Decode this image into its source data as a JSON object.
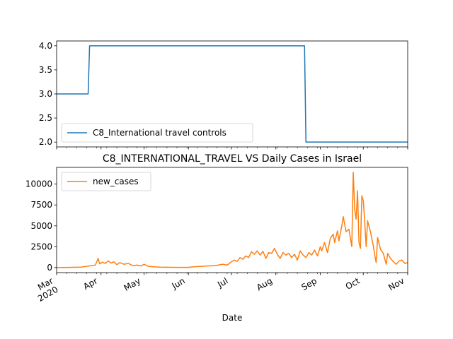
{
  "chart_data": [
    {
      "type": "line",
      "title": "",
      "xlabel": "",
      "ylabel": "",
      "ylim": [
        1.9,
        4.1
      ],
      "yticks": [
        "2.0",
        "2.5",
        "3.0",
        "3.5",
        "4.0"
      ],
      "legend": "lower-left",
      "series": [
        {
          "name": "C8_International travel controls",
          "color": "#1f77b4",
          "points": [
            [
              "2020-03-01",
              3
            ],
            [
              "2020-03-23",
              3
            ],
            [
              "2020-03-24",
              4
            ],
            [
              "2020-08-21",
              4
            ],
            [
              "2020-08-22",
              2
            ],
            [
              "2020-11-01",
              2
            ]
          ]
        }
      ]
    },
    {
      "type": "line",
      "title": "C8_INTERNATIONAL_TRAVEL VS Daily Cases in Israel",
      "xlabel": "Date",
      "ylabel": "",
      "ylim": [
        -600,
        12000
      ],
      "yticks": [
        "0",
        "2500",
        "5000",
        "7500",
        "10000"
      ],
      "xticks": [
        {
          "date": "2020-03-01",
          "label": "Mar",
          "sublabel": "2020"
        },
        {
          "date": "2020-04-01",
          "label": "Apr"
        },
        {
          "date": "2020-05-01",
          "label": "May"
        },
        {
          "date": "2020-06-01",
          "label": "Jun"
        },
        {
          "date": "2020-07-01",
          "label": "Jul"
        },
        {
          "date": "2020-08-01",
          "label": "Aug"
        },
        {
          "date": "2020-09-01",
          "label": "Sep"
        },
        {
          "date": "2020-10-01",
          "label": "Oct"
        },
        {
          "date": "2020-11-01",
          "label": "Nov"
        }
      ],
      "legend": "upper-left",
      "series": [
        {
          "name": "new_cases",
          "color": "#ff7f0e",
          "points": [
            [
              "2020-03-01",
              0
            ],
            [
              "2020-03-10",
              20
            ],
            [
              "2020-03-18",
              60
            ],
            [
              "2020-03-24",
              200
            ],
            [
              "2020-03-28",
              300
            ],
            [
              "2020-03-30",
              1100
            ],
            [
              "2020-03-31",
              450
            ],
            [
              "2020-04-02",
              650
            ],
            [
              "2020-04-04",
              500
            ],
            [
              "2020-04-06",
              800
            ],
            [
              "2020-04-08",
              550
            ],
            [
              "2020-04-10",
              700
            ],
            [
              "2020-04-12",
              350
            ],
            [
              "2020-04-14",
              600
            ],
            [
              "2020-04-17",
              400
            ],
            [
              "2020-04-20",
              500
            ],
            [
              "2020-04-23",
              250
            ],
            [
              "2020-04-26",
              300
            ],
            [
              "2020-04-29",
              200
            ],
            [
              "2020-05-01",
              400
            ],
            [
              "2020-05-04",
              150
            ],
            [
              "2020-05-08",
              100
            ],
            [
              "2020-05-12",
              60
            ],
            [
              "2020-05-20",
              30
            ],
            [
              "2020-05-31",
              20
            ],
            [
              "2020-06-05",
              100
            ],
            [
              "2020-06-10",
              150
            ],
            [
              "2020-06-15",
              200
            ],
            [
              "2020-06-20",
              250
            ],
            [
              "2020-06-25",
              400
            ],
            [
              "2020-06-28",
              300
            ],
            [
              "2020-07-01",
              700
            ],
            [
              "2020-07-03",
              900
            ],
            [
              "2020-07-05",
              750
            ],
            [
              "2020-07-07",
              1200
            ],
            [
              "2020-07-09",
              1000
            ],
            [
              "2020-07-11",
              1400
            ],
            [
              "2020-07-13",
              1200
            ],
            [
              "2020-07-15",
              1900
            ],
            [
              "2020-07-17",
              1600
            ],
            [
              "2020-07-19",
              2000
            ],
            [
              "2020-07-21",
              1500
            ],
            [
              "2020-07-23",
              1950
            ],
            [
              "2020-07-25",
              1100
            ],
            [
              "2020-07-27",
              1800
            ],
            [
              "2020-07-29",
              1700
            ],
            [
              "2020-07-31",
              2300
            ],
            [
              "2020-08-02",
              1600
            ],
            [
              "2020-08-04",
              1100
            ],
            [
              "2020-08-06",
              1800
            ],
            [
              "2020-08-08",
              1500
            ],
            [
              "2020-08-10",
              1700
            ],
            [
              "2020-08-12",
              1200
            ],
            [
              "2020-08-14",
              1600
            ],
            [
              "2020-08-16",
              900
            ],
            [
              "2020-08-18",
              2000
            ],
            [
              "2020-08-20",
              1500
            ],
            [
              "2020-08-22",
              1200
            ],
            [
              "2020-08-24",
              1800
            ],
            [
              "2020-08-26",
              1500
            ],
            [
              "2020-08-28",
              2100
            ],
            [
              "2020-08-30",
              1400
            ],
            [
              "2020-09-01",
              2500
            ],
            [
              "2020-09-02",
              2000
            ],
            [
              "2020-09-04",
              3000
            ],
            [
              "2020-09-06",
              1800
            ],
            [
              "2020-09-08",
              3500
            ],
            [
              "2020-09-10",
              4000
            ],
            [
              "2020-09-11",
              3000
            ],
            [
              "2020-09-13",
              4400
            ],
            [
              "2020-09-14",
              3200
            ],
            [
              "2020-09-16",
              5000
            ],
            [
              "2020-09-17",
              6100
            ],
            [
              "2020-09-19",
              4300
            ],
            [
              "2020-09-21",
              4600
            ],
            [
              "2020-09-23",
              2500
            ],
            [
              "2020-09-24",
              11400
            ],
            [
              "2020-09-25",
              7000
            ],
            [
              "2020-09-26",
              5800
            ],
            [
              "2020-09-27",
              9200
            ],
            [
              "2020-09-28",
              3000
            ],
            [
              "2020-09-29",
              2300
            ],
            [
              "2020-09-30",
              8600
            ],
            [
              "2020-10-01",
              8000
            ],
            [
              "2020-10-02",
              5500
            ],
            [
              "2020-10-03",
              2500
            ],
            [
              "2020-10-04",
              5600
            ],
            [
              "2020-10-06",
              4300
            ],
            [
              "2020-10-08",
              2600
            ],
            [
              "2020-10-09",
              1500
            ],
            [
              "2020-10-10",
              600
            ],
            [
              "2020-10-11",
              3600
            ],
            [
              "2020-10-13",
              2200
            ],
            [
              "2020-10-15",
              1700
            ],
            [
              "2020-10-17",
              400
            ],
            [
              "2020-10-18",
              1700
            ],
            [
              "2020-10-20",
              1100
            ],
            [
              "2020-10-22",
              700
            ],
            [
              "2020-10-24",
              400
            ],
            [
              "2020-10-26",
              800
            ],
            [
              "2020-10-28",
              900
            ],
            [
              "2020-10-30",
              500
            ],
            [
              "2020-11-01",
              600
            ]
          ]
        }
      ]
    }
  ]
}
